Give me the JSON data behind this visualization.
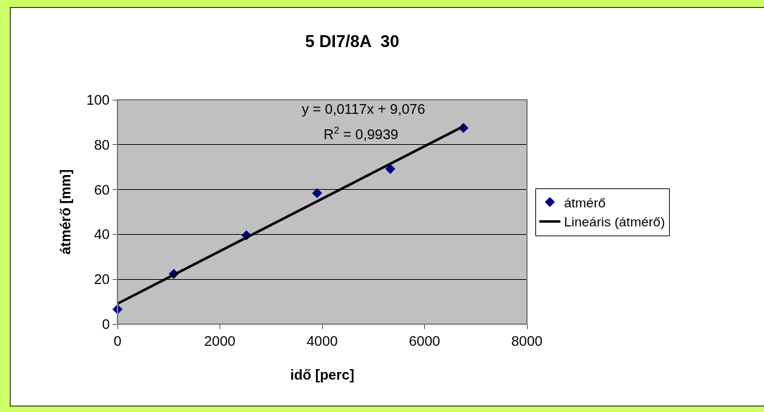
{
  "chart_data": {
    "type": "scatter",
    "title": "5 DI7/8A  30",
    "xlabel": "idő [perc]",
    "ylabel": "átmérő [mm]",
    "x": [
      0,
      1100,
      2520,
      3900,
      5330,
      6760
    ],
    "series": [
      {
        "name": "átmérő",
        "color": "#000080",
        "values": [
          6.6,
          22.4,
          39.6,
          58.4,
          69.2,
          87.5
        ],
        "marker": "diamond"
      },
      {
        "name": "Lineáris (átmérő)",
        "type": "line",
        "color": "#000000",
        "x": [
          0,
          6760
        ],
        "values": [
          9.1,
          88.2
        ],
        "marker": "none",
        "line_style": "solid"
      }
    ],
    "annotations": [
      "y = 0,0117x + 9,076",
      "R$^{2}$ = 0,9939"
    ],
    "xlim": [
      0,
      8000
    ],
    "xticks": [
      0,
      2000,
      4000,
      6000,
      8000
    ],
    "ylim": [
      0,
      100
    ],
    "yticks": [
      0,
      20,
      40,
      60,
      80,
      100
    ],
    "grid": "y",
    "legend": "right"
  }
}
